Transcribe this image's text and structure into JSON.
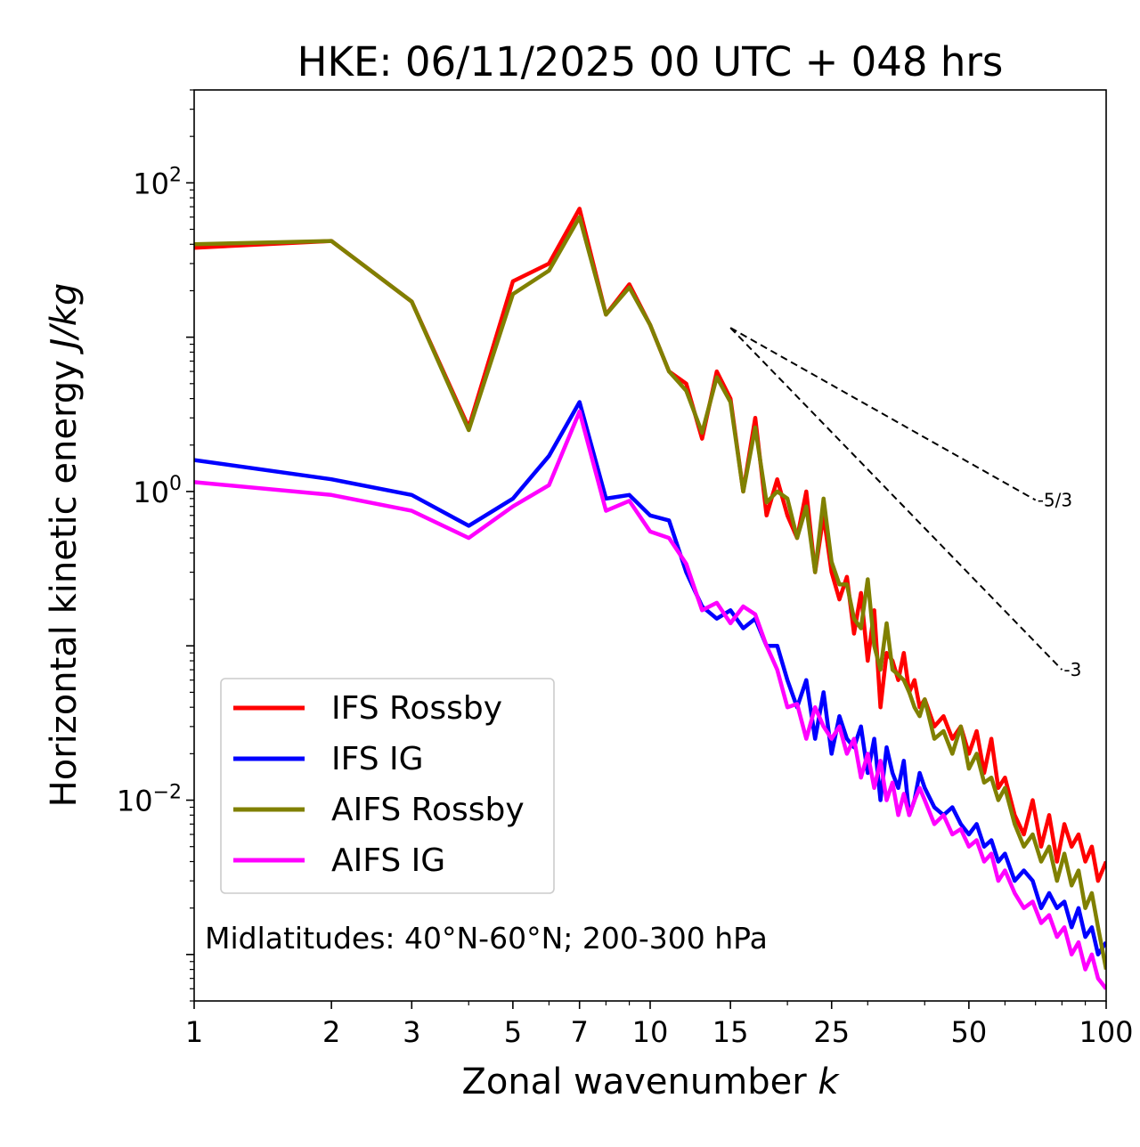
{
  "chart_data": {
    "type": "line",
    "title": "HKE: 06/11/2025 00 UTC + 048 hrs",
    "xlabel": "Zonal wavenumber k",
    "xlabel_text": "Zonal wavenumber ",
    "xlabel_var": "k",
    "ylabel": "Horizontal kinetic energy J/kg",
    "ylabel_text": "Horizontal kinetic energy ",
    "ylabel_units": "J/kg",
    "xscale": "log",
    "yscale": "log",
    "xlim": [
      1,
      100
    ],
    "ylim": [
      0.0005,
      400
    ],
    "xticks": [
      1,
      2,
      3,
      5,
      7,
      10,
      15,
      25,
      50,
      100
    ],
    "xtick_labels": [
      "1",
      "2",
      "3",
      "5",
      "7",
      "10",
      "15",
      "25",
      "50",
      "100"
    ],
    "yticks": [
      0.01,
      1,
      100
    ],
    "ytick_mantissa": "10",
    "ytick_exponents": [
      "−2",
      "0",
      "2"
    ],
    "annotation": "Midlatitudes: 40°N-60°N; 200-300 hPa",
    "legend_position": "lower-left",
    "reference_slopes": [
      {
        "label": "-5/3",
        "x": [
          15,
          70
        ],
        "y": [
          11.5,
          0.88
        ]
      },
      {
        "label": "-3",
        "x": [
          15,
          80
        ],
        "y": [
          11.5,
          0.07
        ]
      }
    ],
    "series": [
      {
        "name": "IFS Rossby",
        "color": "#ff0000",
        "x": [
          1,
          2,
          3,
          4,
          5,
          6,
          7,
          8,
          9,
          10,
          11,
          12,
          13,
          14,
          15,
          16,
          17,
          18,
          19,
          20,
          21,
          22,
          23,
          24,
          25,
          26,
          27,
          28,
          29,
          30,
          31,
          32,
          33,
          34,
          35,
          36,
          37,
          38,
          39,
          40,
          42,
          44,
          46,
          48,
          50,
          52,
          54,
          56,
          58,
          60,
          63,
          66,
          69,
          72,
          75,
          78,
          81,
          84,
          87,
          90,
          93,
          96,
          100
        ],
        "y": [
          38,
          42,
          17,
          2.6,
          23,
          30,
          68,
          14,
          22,
          12,
          6,
          5,
          2.2,
          6,
          4,
          1,
          3,
          0.7,
          1.2,
          0.7,
          0.5,
          1,
          0.3,
          0.7,
          0.3,
          0.2,
          0.28,
          0.12,
          0.22,
          0.08,
          0.17,
          0.04,
          0.09,
          0.08,
          0.06,
          0.09,
          0.05,
          0.06,
          0.04,
          0.045,
          0.03,
          0.035,
          0.025,
          0.03,
          0.02,
          0.028,
          0.015,
          0.025,
          0.012,
          0.014,
          0.008,
          0.006,
          0.01,
          0.005,
          0.008,
          0.004,
          0.007,
          0.005,
          0.006,
          0.004,
          0.005,
          0.003,
          0.004
        ]
      },
      {
        "name": "IFS IG",
        "color": "#0000ff",
        "x": [
          1,
          2,
          3,
          4,
          5,
          6,
          7,
          8,
          9,
          10,
          11,
          12,
          13,
          14,
          15,
          16,
          17,
          18,
          19,
          20,
          21,
          22,
          23,
          24,
          25,
          26,
          27,
          28,
          29,
          30,
          31,
          32,
          33,
          34,
          35,
          36,
          37,
          38,
          39,
          40,
          42,
          44,
          46,
          48,
          50,
          52,
          54,
          56,
          58,
          60,
          63,
          66,
          69,
          72,
          75,
          78,
          81,
          84,
          87,
          90,
          93,
          96,
          100
        ],
        "y": [
          1.6,
          1.2,
          0.95,
          0.6,
          0.9,
          1.7,
          3.8,
          0.9,
          0.95,
          0.7,
          0.65,
          0.3,
          0.18,
          0.15,
          0.17,
          0.13,
          0.15,
          0.1,
          0.1,
          0.06,
          0.04,
          0.06,
          0.025,
          0.05,
          0.02,
          0.035,
          0.025,
          0.022,
          0.03,
          0.015,
          0.025,
          0.01,
          0.022,
          0.015,
          0.012,
          0.018,
          0.008,
          0.01,
          0.015,
          0.012,
          0.009,
          0.008,
          0.009,
          0.007,
          0.006,
          0.007,
          0.005,
          0.0055,
          0.004,
          0.0045,
          0.003,
          0.0035,
          0.003,
          0.002,
          0.0025,
          0.002,
          0.0022,
          0.0015,
          0.002,
          0.0013,
          0.0015,
          0.001,
          0.0012
        ]
      },
      {
        "name": "AIFS Rossby",
        "color": "#808000",
        "x": [
          1,
          2,
          3,
          4,
          5,
          6,
          7,
          8,
          9,
          10,
          11,
          12,
          13,
          14,
          15,
          16,
          17,
          18,
          19,
          20,
          21,
          22,
          23,
          24,
          25,
          26,
          27,
          28,
          29,
          30,
          31,
          32,
          33,
          34,
          35,
          36,
          37,
          38,
          39,
          40,
          42,
          44,
          46,
          48,
          50,
          52,
          54,
          56,
          58,
          60,
          63,
          66,
          69,
          72,
          75,
          78,
          81,
          84,
          87,
          90,
          93,
          96,
          100
        ],
        "y": [
          40,
          42,
          17,
          2.5,
          19,
          27,
          60,
          14,
          21,
          12,
          6,
          4.5,
          2.4,
          5.5,
          3.8,
          1,
          2.6,
          0.85,
          1,
          0.9,
          0.5,
          0.8,
          0.3,
          0.9,
          0.35,
          0.25,
          0.25,
          0.15,
          0.13,
          0.27,
          0.1,
          0.07,
          0.14,
          0.07,
          0.065,
          0.06,
          0.05,
          0.04,
          0.035,
          0.045,
          0.025,
          0.028,
          0.02,
          0.03,
          0.016,
          0.02,
          0.013,
          0.014,
          0.01,
          0.012,
          0.007,
          0.005,
          0.006,
          0.004,
          0.005,
          0.003,
          0.0045,
          0.0028,
          0.0035,
          0.002,
          0.0025,
          0.0015,
          0.0008
        ]
      },
      {
        "name": "AIFS IG",
        "color": "#ff00ff",
        "x": [
          1,
          2,
          3,
          4,
          5,
          6,
          7,
          8,
          9,
          10,
          11,
          12,
          13,
          14,
          15,
          16,
          17,
          18,
          19,
          20,
          21,
          22,
          23,
          24,
          25,
          26,
          27,
          28,
          29,
          30,
          31,
          32,
          33,
          34,
          35,
          36,
          37,
          38,
          39,
          40,
          42,
          44,
          46,
          48,
          50,
          52,
          54,
          56,
          58,
          60,
          63,
          66,
          69,
          72,
          75,
          78,
          81,
          84,
          87,
          90,
          93,
          96,
          100
        ],
        "y": [
          1.15,
          0.95,
          0.75,
          0.5,
          0.8,
          1.1,
          3.3,
          0.75,
          0.87,
          0.55,
          0.5,
          0.34,
          0.17,
          0.19,
          0.14,
          0.18,
          0.16,
          0.1,
          0.07,
          0.04,
          0.042,
          0.025,
          0.04,
          0.03,
          0.025,
          0.03,
          0.02,
          0.025,
          0.014,
          0.02,
          0.012,
          0.018,
          0.01,
          0.013,
          0.008,
          0.011,
          0.008,
          0.01,
          0.012,
          0.01,
          0.007,
          0.008,
          0.006,
          0.0065,
          0.005,
          0.0055,
          0.004,
          0.0045,
          0.003,
          0.0035,
          0.0025,
          0.002,
          0.0022,
          0.0016,
          0.0018,
          0.0013,
          0.0015,
          0.001,
          0.0012,
          0.0008,
          0.001,
          0.0007,
          0.0006
        ]
      }
    ]
  }
}
